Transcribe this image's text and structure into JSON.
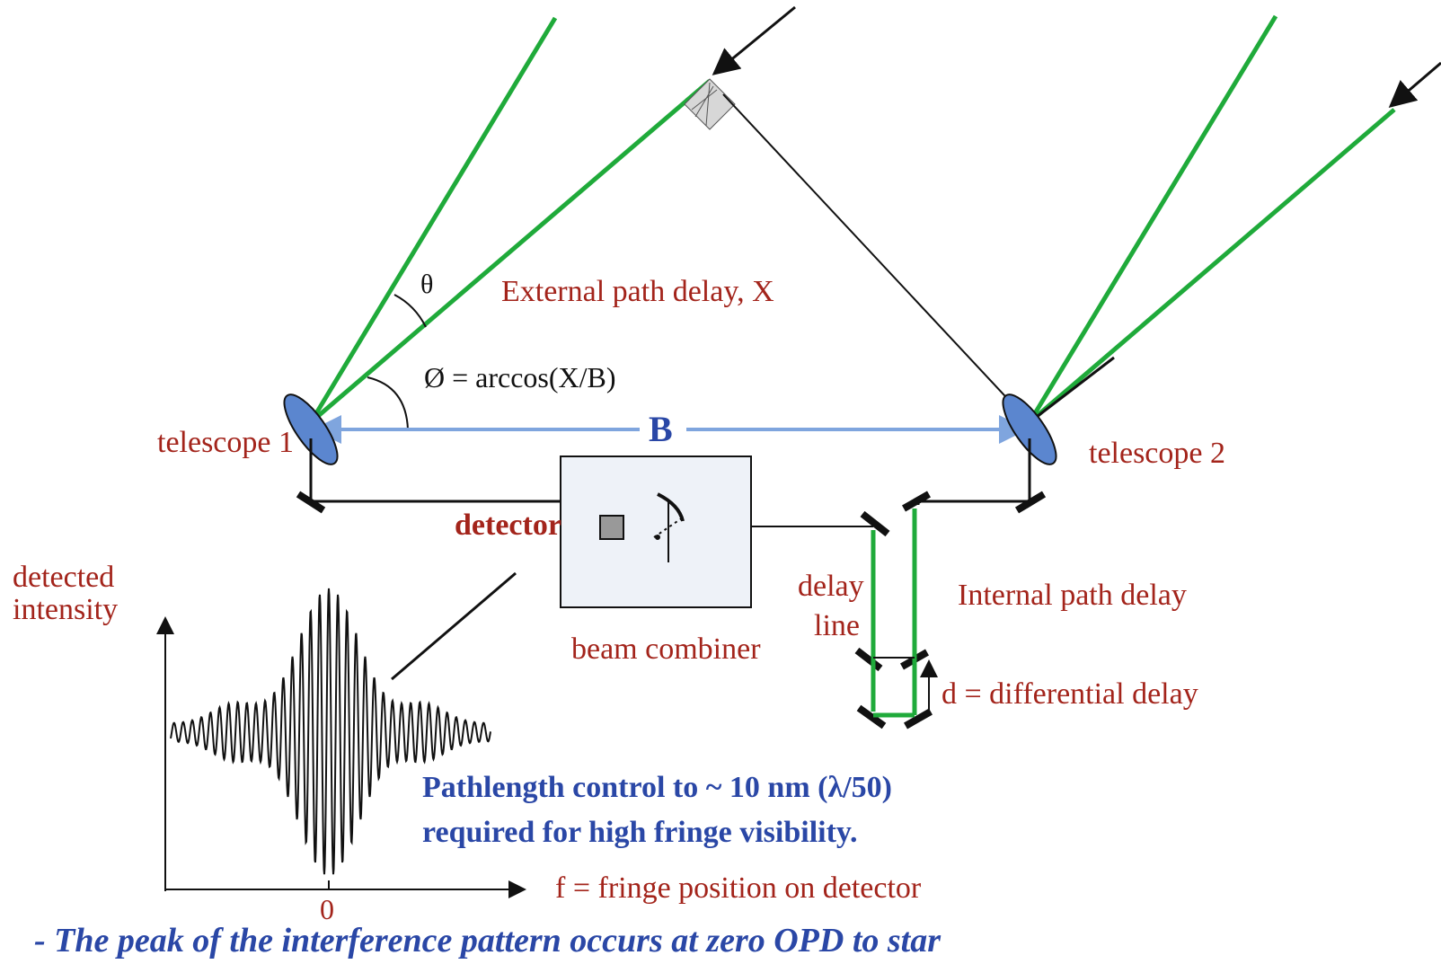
{
  "labels": {
    "theta": "θ",
    "external_delay": "External path delay, X",
    "phi": "Ø = arccos(X/B)",
    "baseline": "B",
    "telescope1": "telescope 1",
    "telescope2": "telescope 2",
    "detector": "detector",
    "detected_intensity_line1": "detected",
    "detected_intensity_line2": "intensity",
    "delay_line_line1": "delay",
    "delay_line_line2": "line",
    "internal_delay": "Internal path delay",
    "beam_combiner": "beam combiner",
    "differential_delay": "d = differential delay",
    "pathlength_line1": "Pathlength control to ~ 10 nm (λ/50)",
    "pathlength_line2": "required for high fringe visibility.",
    "fringe_position": "f = fringe position on detector",
    "axis_zero": "0",
    "footer": "- The peak of the interference pattern occurs at zero OPD to star"
  },
  "colors": {
    "beam_green": "#1faa3a",
    "baseline_blue": "#7fa5de",
    "label_red": "#a3241b",
    "label_blue": "#2a47a6",
    "telescope_fill": "#5b86cf",
    "combiner_fill": "#eef2f8"
  }
}
